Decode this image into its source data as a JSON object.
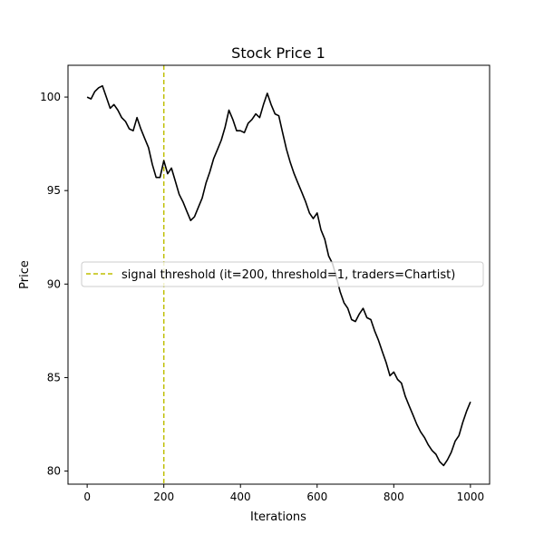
{
  "chart_data": {
    "type": "line",
    "title": "Stock Price 1",
    "xlabel": "Iterations",
    "ylabel": "Price",
    "xlim": [
      -50,
      1050
    ],
    "ylim": [
      79.3,
      101.7
    ],
    "xticks": [
      0,
      200,
      400,
      600,
      800,
      1000
    ],
    "yticks": [
      80,
      85,
      90,
      95,
      100
    ],
    "grid": false,
    "legend_position": "center-left",
    "series": [
      {
        "name": "",
        "color": "#000000",
        "x": [
          0,
          10,
          20,
          30,
          40,
          50,
          60,
          70,
          80,
          90,
          100,
          110,
          120,
          130,
          140,
          150,
          160,
          170,
          180,
          190,
          200,
          210,
          220,
          230,
          240,
          250,
          260,
          270,
          280,
          290,
          300,
          310,
          320,
          330,
          340,
          350,
          360,
          370,
          380,
          390,
          400,
          410,
          420,
          430,
          440,
          450,
          460,
          470,
          480,
          490,
          500,
          510,
          520,
          530,
          540,
          550,
          560,
          570,
          580,
          590,
          600,
          610,
          620,
          630,
          640,
          650,
          660,
          670,
          680,
          690,
          700,
          710,
          720,
          730,
          740,
          750,
          760,
          770,
          780,
          790,
          800,
          810,
          820,
          830,
          840,
          850,
          860,
          870,
          880,
          890,
          900,
          910,
          920,
          930,
          940,
          950,
          960,
          970,
          980,
          990,
          1000
        ],
        "values": [
          100.0,
          99.9,
          100.3,
          100.5,
          100.6,
          100.0,
          99.4,
          99.6,
          99.3,
          98.9,
          98.7,
          98.3,
          98.2,
          98.9,
          98.3,
          97.8,
          97.3,
          96.4,
          95.7,
          95.7,
          96.6,
          95.9,
          96.2,
          95.5,
          94.8,
          94.4,
          93.9,
          93.4,
          93.6,
          94.1,
          94.6,
          95.4,
          96.0,
          96.7,
          97.2,
          97.7,
          98.4,
          99.3,
          98.8,
          98.2,
          98.2,
          98.1,
          98.6,
          98.8,
          99.1,
          98.9,
          99.6,
          100.2,
          99.6,
          99.1,
          99.0,
          98.1,
          97.2,
          96.5,
          95.9,
          95.4,
          94.9,
          94.4,
          93.8,
          93.5,
          93.8,
          92.9,
          92.4,
          91.5,
          91.1,
          90.4,
          89.6,
          89.0,
          88.7,
          88.1,
          88.0,
          88.4,
          88.7,
          88.2,
          88.1,
          87.5,
          87.0,
          86.4,
          85.8,
          85.1,
          85.3,
          84.9,
          84.7,
          84.0,
          83.5,
          83.0,
          82.5,
          82.1,
          81.8,
          81.4,
          81.1,
          80.9,
          80.5,
          80.3,
          80.6,
          81.0,
          81.6,
          81.9,
          82.6,
          83.2,
          83.7
        ]
      }
    ],
    "vline": {
      "x": 200,
      "color": "#bfbf00",
      "style": "dashed",
      "label": "signal threshold (it=200, threshold=1, traders=Chartist)"
    }
  }
}
